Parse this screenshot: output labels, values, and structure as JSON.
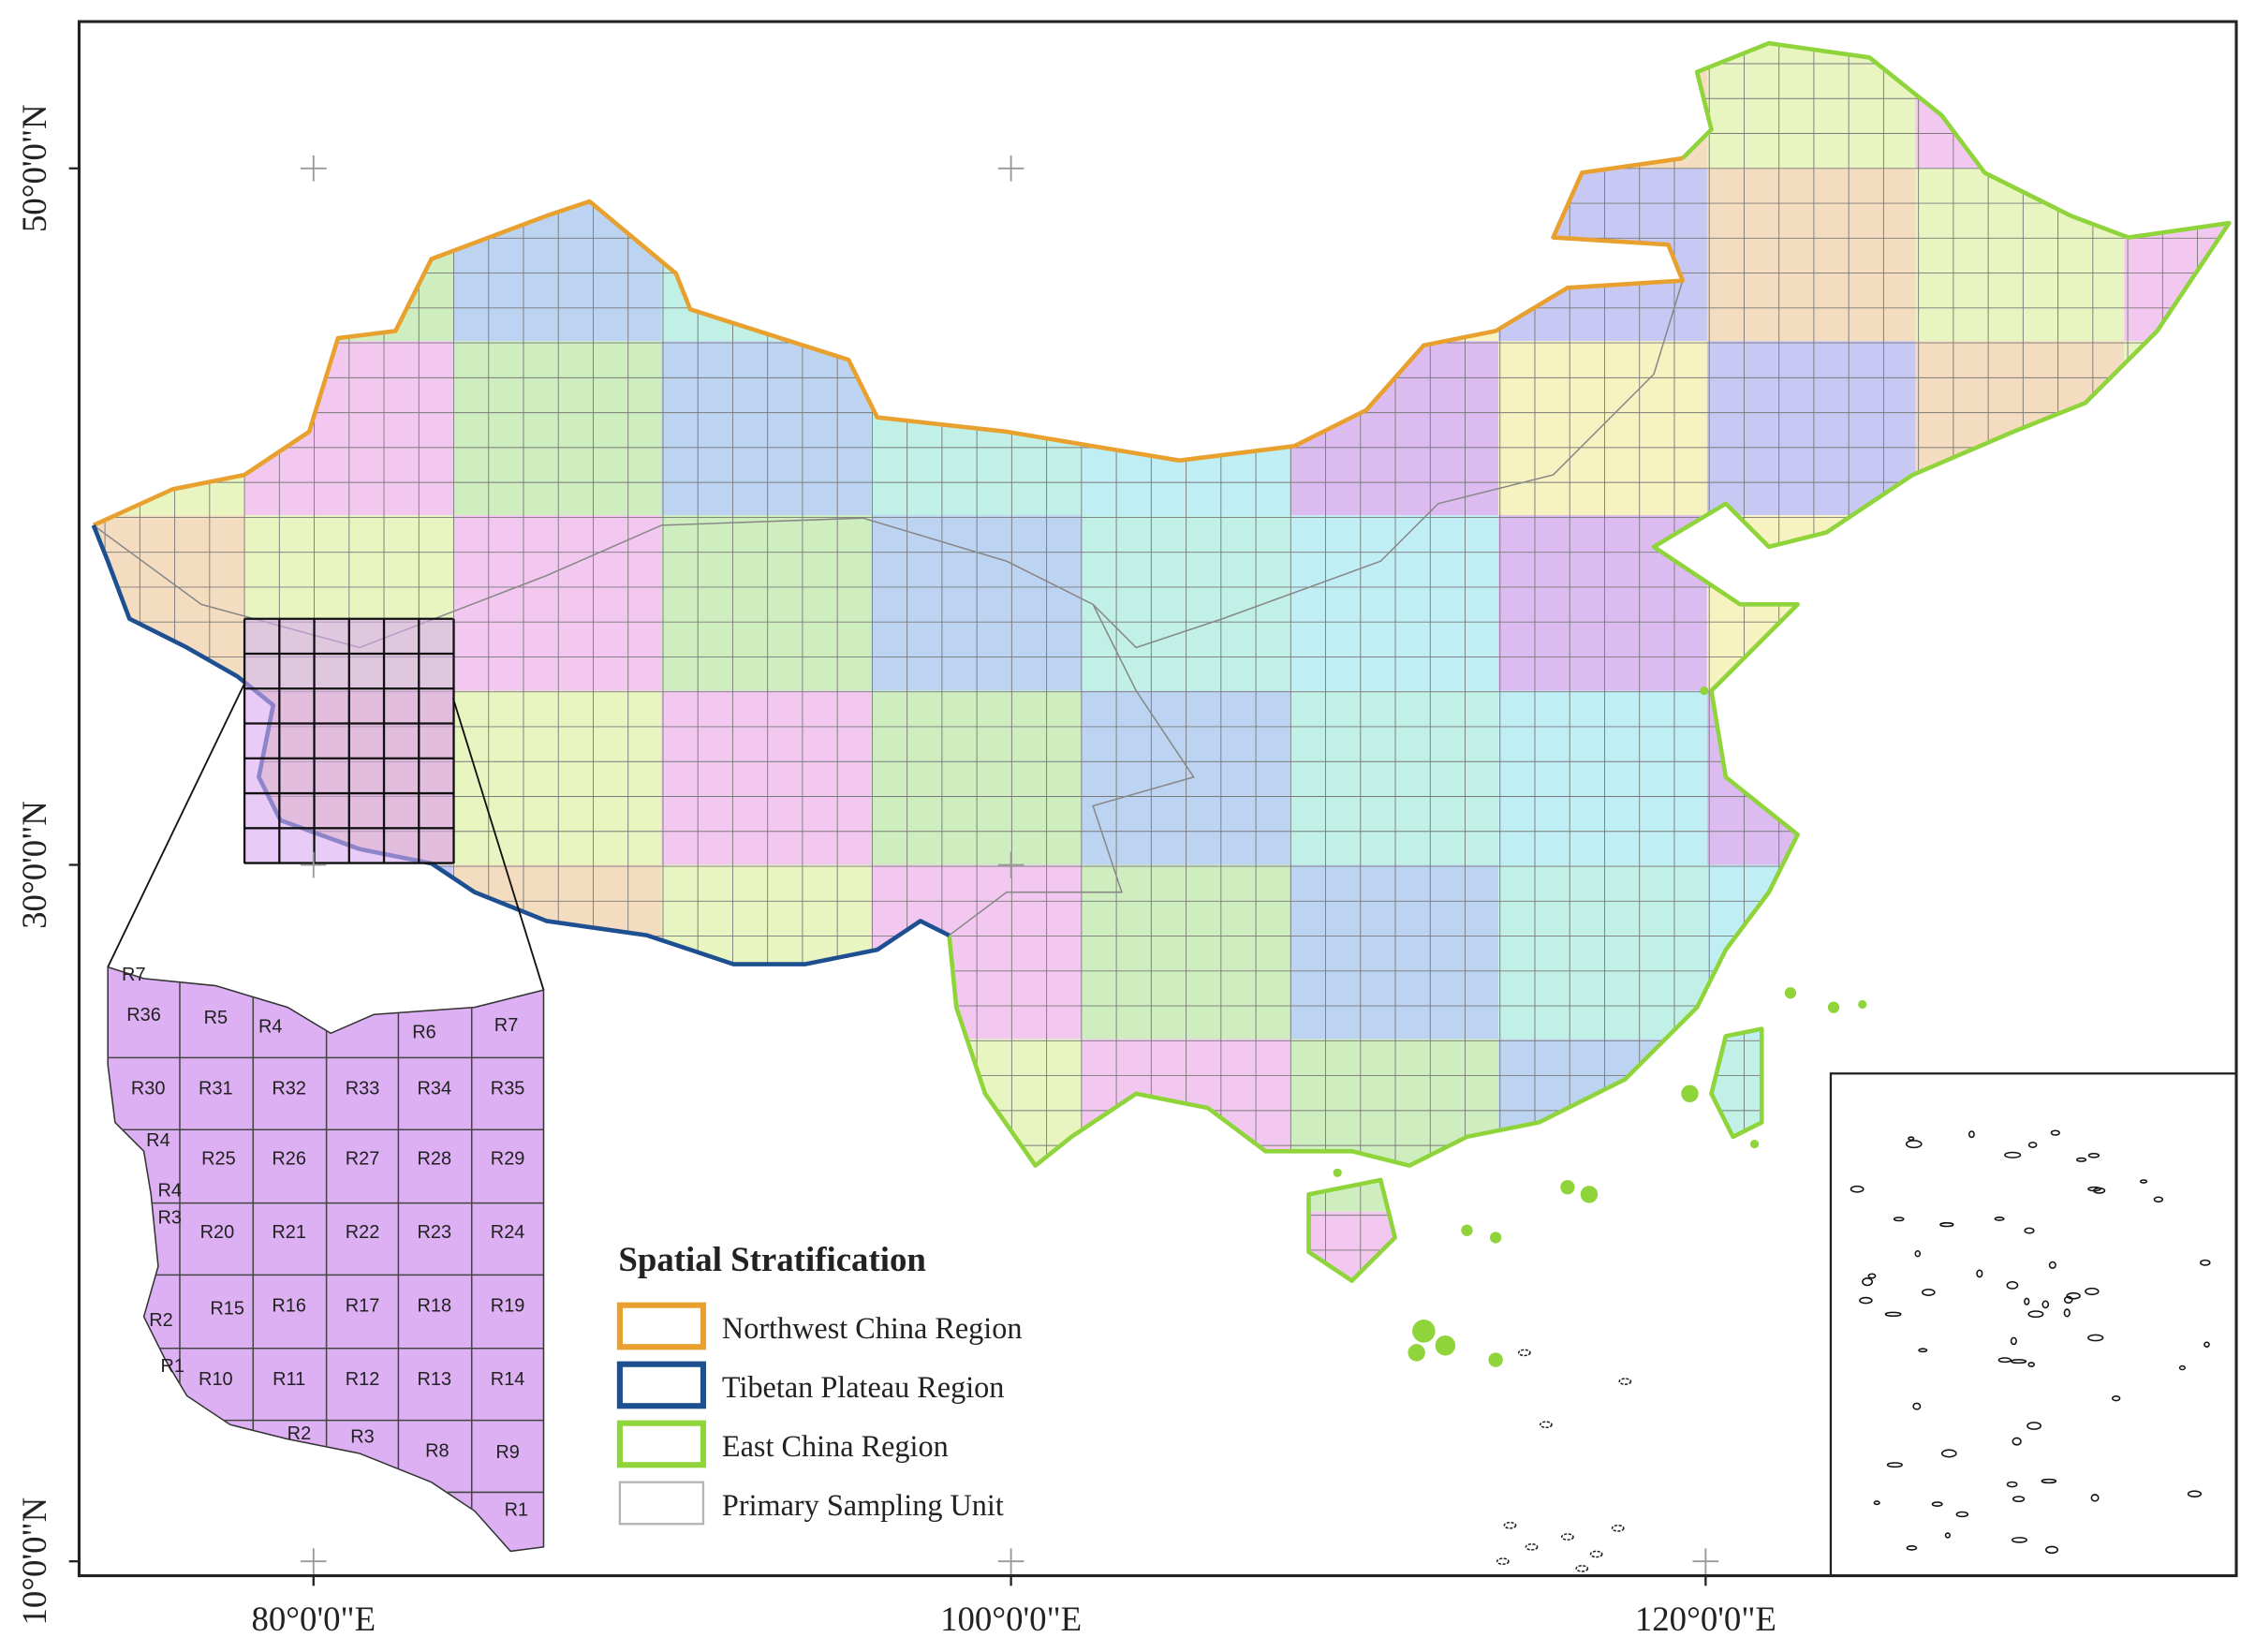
{
  "axes": {
    "y_labels": [
      "50°0'0\"N",
      "30°0'0\"N",
      "10°0'0\"N"
    ],
    "x_labels": [
      "80°0'0\"E",
      "100°0'0\"E",
      "120°0'0\"E"
    ]
  },
  "legend": {
    "title": "Spatial Stratification",
    "items": [
      {
        "label": "Northwest China Region",
        "color": "#e8a02e"
      },
      {
        "label": "Tibetan Plateau Region",
        "color": "#1d4f91"
      },
      {
        "label": "East China Region",
        "color": "#8fd43a"
      },
      {
        "label": "Primary Sampling Unit",
        "color": "#b4b4b4"
      }
    ]
  },
  "inset": {
    "labels": [
      "R7",
      "R36",
      "R5",
      "R4",
      "R6",
      "R7",
      "R30",
      "R31",
      "R32",
      "R33",
      "R34",
      "R35",
      "R4",
      "R25",
      "R26",
      "R27",
      "R28",
      "R29",
      "R4",
      "R3",
      "R20",
      "R21",
      "R22",
      "R23",
      "R24",
      "R2",
      "R15",
      "R16",
      "R17",
      "R18",
      "R19",
      "R1",
      "R10",
      "R11",
      "R12",
      "R13",
      "R14",
      "R2",
      "R3",
      "R8",
      "R9",
      "R1"
    ]
  }
}
